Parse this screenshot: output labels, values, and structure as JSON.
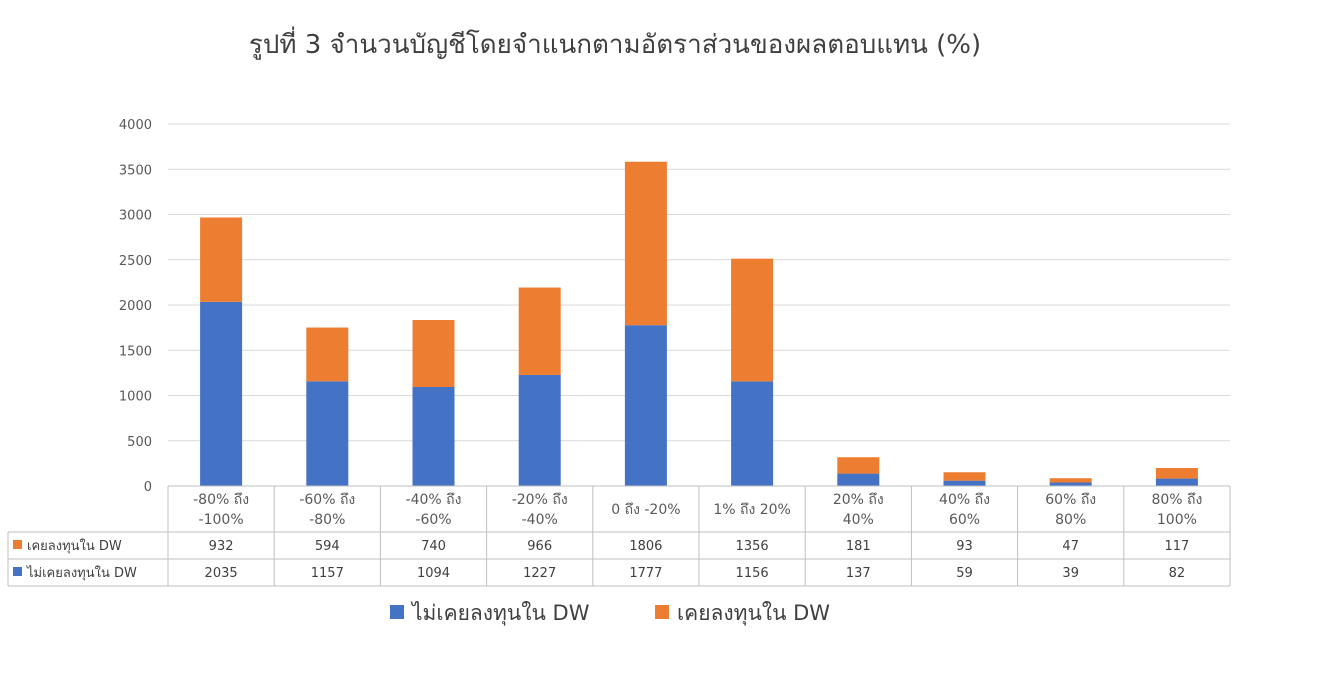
{
  "chart_data": {
    "type": "bar",
    "stacked": true,
    "title": "รูปที่ 3 จำนวนบัญชีโดยจำแนกตามอัตราส่วนของผลตอบแทน (%)",
    "categories": [
      [
        "-80% ถึง",
        "-100%"
      ],
      [
        "-60% ถึง",
        "-80%"
      ],
      [
        "-40% ถึง",
        "-60%"
      ],
      [
        "-20% ถึง",
        "-40%"
      ],
      [
        "0 ถึง -20%"
      ],
      [
        "1% ถึง 20%"
      ],
      [
        "20% ถึง",
        "40%"
      ],
      [
        "40% ถึง",
        "60%"
      ],
      [
        "60% ถึง",
        "80%"
      ],
      [
        "80% ถึง",
        "100%"
      ]
    ],
    "series": [
      {
        "name": "ไม่เคยลงทุนใน DW",
        "color": "#4472C4",
        "values": [
          2035,
          1157,
          1094,
          1227,
          1777,
          1156,
          137,
          59,
          39,
          82
        ]
      },
      {
        "name": "เคยลงทุนใน DW",
        "color": "#ED7D31",
        "values": [
          932,
          594,
          740,
          966,
          1806,
          1356,
          181,
          93,
          47,
          117
        ]
      }
    ],
    "ylim": [
      0,
      4000
    ],
    "yticks": [
      0,
      500,
      1000,
      1500,
      2000,
      2500,
      3000,
      3500,
      4000
    ],
    "grid": true,
    "data_table": true,
    "legend_position": "bottom"
  }
}
